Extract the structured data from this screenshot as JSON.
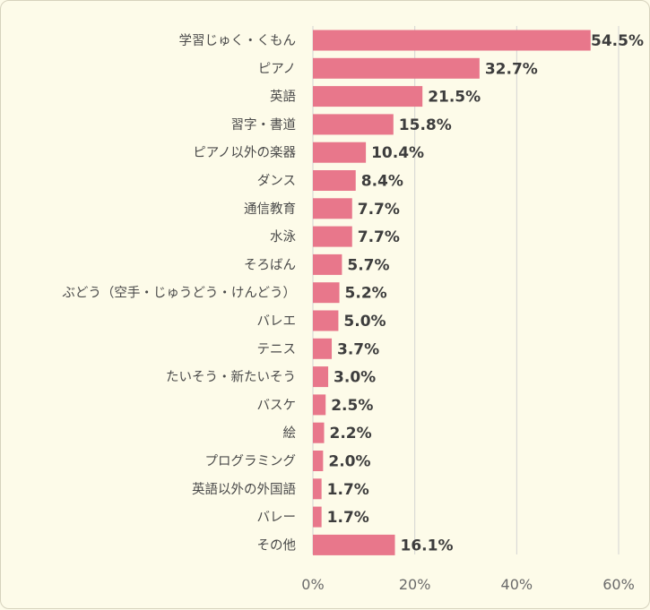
{
  "chart_data": {
    "type": "bar",
    "orientation": "horizontal",
    "categories": [
      "学習じゅく・くもん",
      "ピアノ",
      "英語",
      "習字・書道",
      "ピアノ以外の楽器",
      "ダンス",
      "通信教育",
      "水泳",
      "そろばん",
      "ぶどう（空手・じゅうどう・けんどう）",
      "バレエ",
      "テニス",
      "たいそう・新たいそう",
      "バスケ",
      "絵",
      "プログラミング",
      "英語以外の外国語",
      "バレー",
      "その他"
    ],
    "values": [
      54.5,
      32.7,
      21.5,
      15.8,
      10.4,
      8.4,
      7.7,
      7.7,
      5.7,
      5.2,
      5.0,
      3.7,
      3.0,
      2.5,
      2.2,
      2.0,
      1.7,
      1.7,
      16.1
    ],
    "value_labels": [
      "54.5%",
      "32.7%",
      "21.5%",
      "15.8%",
      "10.4%",
      "8.4%",
      "7.7%",
      "7.7%",
      "5.7%",
      "5.2%",
      "5.0%",
      "3.7%",
      "3.0%",
      "2.5%",
      "2.2%",
      "2.0%",
      "1.7%",
      "1.7%",
      "16.1%"
    ],
    "x_ticks": [
      0,
      20,
      40,
      60
    ],
    "x_tick_labels": [
      "0%",
      "20%",
      "40%",
      "60%"
    ],
    "xlim": [
      0,
      60
    ],
    "grid": true,
    "bar_color": "#e8778b",
    "title": "",
    "xlabel": "",
    "ylabel": ""
  }
}
